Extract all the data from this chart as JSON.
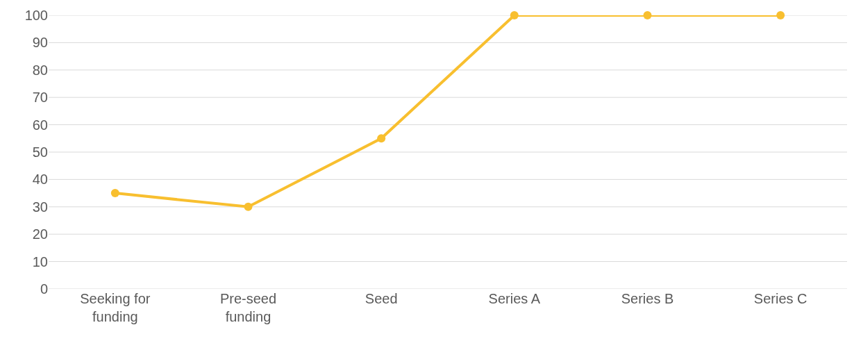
{
  "chart_data": {
    "type": "line",
    "categories": [
      "Seeking for funding",
      "Pre-seed funding",
      "Seed",
      "Series A",
      "Series B",
      "Series C"
    ],
    "series": [
      {
        "color": "#f8bf2f",
        "values": [
          35,
          30,
          55,
          100,
          100,
          100
        ]
      }
    ],
    "ylim": [
      0,
      100
    ],
    "yticks": [
      0,
      10,
      20,
      30,
      40,
      50,
      60,
      70,
      80,
      90,
      100
    ],
    "grid": "y",
    "marker": "circle",
    "line_style": "solid"
  }
}
